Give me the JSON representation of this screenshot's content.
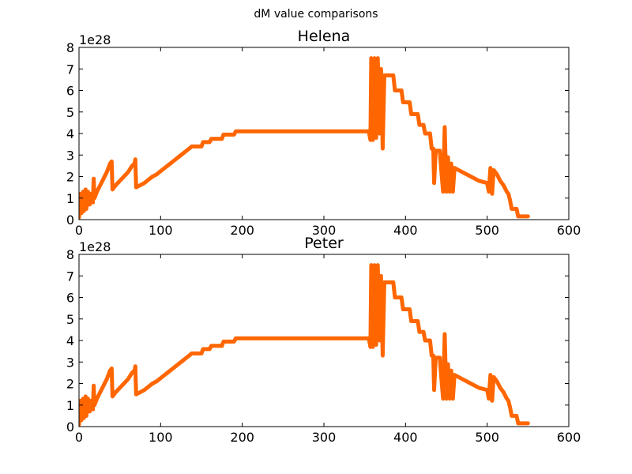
{
  "figure": {
    "suptitle": "dM value comparisons"
  },
  "chart_data": [
    {
      "type": "line",
      "title": "Helena",
      "xlabel": "",
      "ylabel": "",
      "xlim": [
        0,
        600
      ],
      "ylim": [
        0,
        8
      ],
      "y_scale_label": "1e28",
      "xticks": [
        "0",
        "100",
        "200",
        "300",
        "400",
        "500",
        "600"
      ],
      "yticks": [
        "0",
        "1",
        "2",
        "3",
        "4",
        "5",
        "6",
        "7",
        "8"
      ],
      "grid": false,
      "color": "#ff6600",
      "series": [
        {
          "values_unit": "1e28",
          "points": [
            [
              0,
              0.1
            ],
            [
              2,
              1.2
            ],
            [
              3,
              0.3
            ],
            [
              5,
              1.3
            ],
            [
              6,
              0.4
            ],
            [
              8,
              1.4
            ],
            [
              9,
              0.5
            ],
            [
              11,
              1.3
            ],
            [
              13,
              0.7
            ],
            [
              15,
              1.2
            ],
            [
              17,
              0.8
            ],
            [
              18,
              1.9
            ],
            [
              19,
              1.0
            ],
            [
              22,
              1.3
            ],
            [
              26,
              1.6
            ],
            [
              30,
              1.9
            ],
            [
              34,
              2.2
            ],
            [
              38,
              2.6
            ],
            [
              40,
              2.7
            ],
            [
              41,
              1.4
            ],
            [
              45,
              1.6
            ],
            [
              50,
              1.8
            ],
            [
              55,
              2.0
            ],
            [
              60,
              2.2
            ],
            [
              65,
              2.5
            ],
            [
              68,
              2.6
            ],
            [
              69,
              2.8
            ],
            [
              70,
              1.5
            ],
            [
              75,
              1.6
            ],
            [
              80,
              1.7
            ],
            [
              85,
              1.85
            ],
            [
              90,
              2.0
            ],
            [
              95,
              2.1
            ],
            [
              100,
              2.25
            ],
            [
              105,
              2.4
            ],
            [
              110,
              2.55
            ],
            [
              115,
              2.7
            ],
            [
              120,
              2.85
            ],
            [
              125,
              3.0
            ],
            [
              130,
              3.15
            ],
            [
              135,
              3.3
            ],
            [
              138,
              3.4
            ],
            [
              150,
              3.4
            ],
            [
              152,
              3.6
            ],
            [
              160,
              3.6
            ],
            [
              162,
              3.75
            ],
            [
              175,
              3.75
            ],
            [
              177,
              3.95
            ],
            [
              190,
              3.95
            ],
            [
              192,
              4.1
            ],
            [
              355,
              4.1
            ],
            [
              357,
              3.7
            ],
            [
              358,
              7.5
            ],
            [
              360,
              3.7
            ],
            [
              362,
              7.5
            ],
            [
              364,
              3.8
            ],
            [
              366,
              7.5
            ],
            [
              368,
              4.0
            ],
            [
              370,
              7.0
            ],
            [
              372,
              3.3
            ],
            [
              374,
              6.7
            ],
            [
              385,
              6.7
            ],
            [
              387,
              6.0
            ],
            [
              395,
              6.0
            ],
            [
              397,
              5.45
            ],
            [
              405,
              5.45
            ],
            [
              407,
              4.9
            ],
            [
              415,
              4.9
            ],
            [
              417,
              4.4
            ],
            [
              422,
              4.4
            ],
            [
              424,
              4.0
            ],
            [
              430,
              4.0
            ],
            [
              432,
              3.3
            ],
            [
              434,
              3.3
            ],
            [
              435,
              1.7
            ],
            [
              437,
              3.2
            ],
            [
              442,
              3.2
            ],
            [
              444,
              2.2
            ],
            [
              446,
              1.3
            ],
            [
              448,
              4.3
            ],
            [
              450,
              1.3
            ],
            [
              452,
              2.9
            ],
            [
              454,
              1.3
            ],
            [
              456,
              2.6
            ],
            [
              458,
              1.3
            ],
            [
              460,
              2.4
            ],
            [
              470,
              2.2
            ],
            [
              480,
              2.0
            ],
            [
              490,
              1.8
            ],
            [
              500,
              1.7
            ],
            [
              502,
              1.3
            ],
            [
              504,
              2.4
            ],
            [
              506,
              1.2
            ],
            [
              508,
              2.3
            ],
            [
              512,
              2.1
            ],
            [
              516,
              1.8
            ],
            [
              520,
              1.6
            ],
            [
              524,
              1.3
            ],
            [
              526,
              1.2
            ],
            [
              528,
              0.9
            ],
            [
              530,
              0.5
            ],
            [
              536,
              0.5
            ],
            [
              538,
              0.15
            ],
            [
              550,
              0.15
            ]
          ]
        }
      ]
    },
    {
      "type": "line",
      "title": "Peter",
      "xlabel": "",
      "ylabel": "",
      "xlim": [
        0,
        600
      ],
      "ylim": [
        0,
        8
      ],
      "y_scale_label": "1e28",
      "xticks": [
        "0",
        "100",
        "200",
        "300",
        "400",
        "500",
        "600"
      ],
      "yticks": [
        "0",
        "1",
        "2",
        "3",
        "4",
        "5",
        "6",
        "7",
        "8"
      ],
      "grid": false,
      "color": "#ff6600",
      "series": [
        {
          "values_unit": "1e28",
          "points": [
            [
              0,
              0.1
            ],
            [
              2,
              1.2
            ],
            [
              3,
              0.3
            ],
            [
              5,
              1.3
            ],
            [
              6,
              0.4
            ],
            [
              8,
              1.4
            ],
            [
              9,
              0.5
            ],
            [
              11,
              1.3
            ],
            [
              13,
              0.7
            ],
            [
              15,
              1.2
            ],
            [
              17,
              0.8
            ],
            [
              18,
              1.9
            ],
            [
              19,
              1.0
            ],
            [
              22,
              1.3
            ],
            [
              26,
              1.6
            ],
            [
              30,
              1.9
            ],
            [
              34,
              2.2
            ],
            [
              38,
              2.6
            ],
            [
              40,
              2.7
            ],
            [
              41,
              1.4
            ],
            [
              45,
              1.6
            ],
            [
              50,
              1.8
            ],
            [
              55,
              2.0
            ],
            [
              60,
              2.2
            ],
            [
              65,
              2.5
            ],
            [
              68,
              2.6
            ],
            [
              69,
              2.8
            ],
            [
              70,
              1.5
            ],
            [
              75,
              1.6
            ],
            [
              80,
              1.7
            ],
            [
              85,
              1.85
            ],
            [
              90,
              2.0
            ],
            [
              95,
              2.1
            ],
            [
              100,
              2.25
            ],
            [
              105,
              2.4
            ],
            [
              110,
              2.55
            ],
            [
              115,
              2.7
            ],
            [
              120,
              2.85
            ],
            [
              125,
              3.0
            ],
            [
              130,
              3.15
            ],
            [
              135,
              3.3
            ],
            [
              138,
              3.4
            ],
            [
              150,
              3.4
            ],
            [
              152,
              3.6
            ],
            [
              160,
              3.6
            ],
            [
              162,
              3.75
            ],
            [
              175,
              3.75
            ],
            [
              177,
              3.95
            ],
            [
              190,
              3.95
            ],
            [
              192,
              4.1
            ],
            [
              355,
              4.1
            ],
            [
              357,
              3.7
            ],
            [
              358,
              7.5
            ],
            [
              360,
              3.7
            ],
            [
              362,
              7.5
            ],
            [
              364,
              3.8
            ],
            [
              366,
              7.5
            ],
            [
              368,
              4.0
            ],
            [
              370,
              7.0
            ],
            [
              372,
              3.3
            ],
            [
              374,
              6.7
            ],
            [
              385,
              6.7
            ],
            [
              387,
              6.0
            ],
            [
              395,
              6.0
            ],
            [
              397,
              5.45
            ],
            [
              405,
              5.45
            ],
            [
              407,
              4.9
            ],
            [
              415,
              4.9
            ],
            [
              417,
              4.4
            ],
            [
              422,
              4.4
            ],
            [
              424,
              4.0
            ],
            [
              430,
              4.0
            ],
            [
              432,
              3.3
            ],
            [
              434,
              3.3
            ],
            [
              435,
              1.7
            ],
            [
              437,
              3.2
            ],
            [
              442,
              3.2
            ],
            [
              444,
              2.2
            ],
            [
              446,
              1.3
            ],
            [
              448,
              4.3
            ],
            [
              450,
              1.3
            ],
            [
              452,
              2.9
            ],
            [
              454,
              1.3
            ],
            [
              456,
              2.6
            ],
            [
              458,
              1.3
            ],
            [
              460,
              2.4
            ],
            [
              470,
              2.2
            ],
            [
              480,
              2.0
            ],
            [
              490,
              1.8
            ],
            [
              500,
              1.7
            ],
            [
              502,
              1.3
            ],
            [
              504,
              2.4
            ],
            [
              506,
              1.2
            ],
            [
              508,
              2.3
            ],
            [
              512,
              2.1
            ],
            [
              516,
              1.8
            ],
            [
              520,
              1.6
            ],
            [
              524,
              1.3
            ],
            [
              526,
              1.2
            ],
            [
              528,
              0.9
            ],
            [
              530,
              0.5
            ],
            [
              536,
              0.5
            ],
            [
              538,
              0.15
            ],
            [
              550,
              0.15
            ]
          ]
        }
      ]
    }
  ]
}
